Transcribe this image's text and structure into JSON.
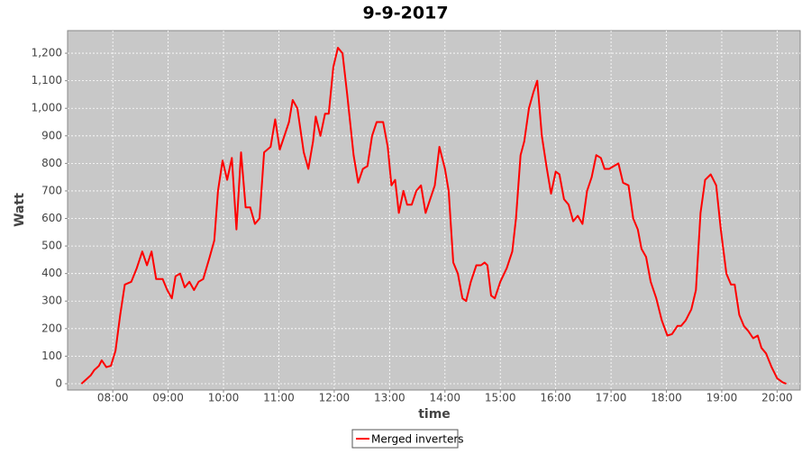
{
  "chart_data": {
    "type": "line",
    "title": "9-9-2017",
    "xlabel": "time",
    "ylabel": "Watt",
    "x": [
      "07:26",
      "07:36",
      "07:40",
      "07:45",
      "07:48",
      "07:53",
      "07:58",
      "08:03",
      "08:08",
      "08:13",
      "08:20",
      "08:26",
      "08:32",
      "08:37",
      "08:42",
      "08:47",
      "08:54",
      "08:59",
      "09:04",
      "09:08",
      "09:13",
      "09:18",
      "09:23",
      "09:28",
      "09:33",
      "09:38",
      "09:45",
      "09:50",
      "09:54",
      "09:59",
      "10:04",
      "10:09",
      "10:14",
      "10:19",
      "10:24",
      "10:29",
      "10:34",
      "10:39",
      "10:44",
      "10:51",
      "10:56",
      "11:01",
      "11:06",
      "11:11",
      "11:15",
      "11:20",
      "11:27",
      "11:32",
      "11:37",
      "11:40",
      "11:45",
      "11:50",
      "11:54",
      "11:59",
      "12:04",
      "12:09",
      "12:14",
      "12:21",
      "12:26",
      "12:31",
      "12:36",
      "12:41",
      "12:46",
      "12:53",
      "12:58",
      "13:02",
      "13:06",
      "13:10",
      "13:15",
      "13:19",
      "13:24",
      "13:29",
      "13:34",
      "13:39",
      "13:44",
      "13:49",
      "13:54",
      "14:00",
      "14:04",
      "14:09",
      "14:14",
      "14:19",
      "14:23",
      "14:28",
      "14:34",
      "14:39",
      "14:43",
      "14:46",
      "14:50",
      "14:54",
      "15:00",
      "15:07",
      "15:13",
      "15:17",
      "15:22",
      "15:26",
      "15:31",
      "15:36",
      "15:40",
      "15:45",
      "15:50",
      "15:55",
      "16:00",
      "16:04",
      "16:09",
      "16:14",
      "16:19",
      "16:24",
      "16:29",
      "16:34",
      "16:39",
      "16:44",
      "16:49",
      "16:53",
      "16:58",
      "17:03",
      "17:08",
      "17:13",
      "17:19",
      "17:24",
      "17:29",
      "17:33",
      "17:38",
      "17:43",
      "17:49",
      "17:55",
      "18:01",
      "18:06",
      "18:12",
      "18:16",
      "18:21",
      "18:27",
      "18:32",
      "18:37",
      "18:42",
      "18:48",
      "18:54",
      "18:59",
      "19:05",
      "19:10",
      "19:14",
      "19:19",
      "19:24",
      "19:29",
      "19:34",
      "19:39",
      "19:43",
      "19:48",
      "19:54",
      "20:00",
      "20:06",
      "20:10"
    ],
    "series": [
      {
        "name": "Merged inverters",
        "color": "#ff0000",
        "values": [
          0,
          30,
          50,
          65,
          85,
          60,
          65,
          120,
          250,
          360,
          370,
          420,
          480,
          430,
          480,
          380,
          380,
          340,
          310,
          390,
          400,
          350,
          370,
          340,
          370,
          380,
          460,
          520,
          700,
          810,
          740,
          820,
          560,
          840,
          640,
          640,
          580,
          600,
          840,
          860,
          960,
          850,
          900,
          950,
          1030,
          1000,
          840,
          780,
          880,
          970,
          900,
          980,
          980,
          1150,
          1220,
          1200,
          1050,
          830,
          730,
          780,
          790,
          900,
          950,
          950,
          860,
          720,
          740,
          620,
          700,
          650,
          650,
          700,
          720,
          620,
          670,
          720,
          860,
          780,
          700,
          440,
          400,
          310,
          300,
          370,
          430,
          430,
          440,
          430,
          320,
          310,
          370,
          420,
          480,
          600,
          830,
          880,
          1000,
          1060,
          1100,
          900,
          790,
          690,
          770,
          760,
          670,
          650,
          590,
          610,
          580,
          700,
          750,
          830,
          820,
          780,
          780,
          790,
          800,
          730,
          720,
          600,
          560,
          490,
          460,
          370,
          310,
          230,
          175,
          180,
          210,
          210,
          230,
          270,
          340,
          620,
          740,
          760,
          720,
          560,
          400,
          360,
          360,
          250,
          210,
          190,
          165,
          175,
          130,
          110,
          60,
          20,
          5,
          0
        ]
      }
    ],
    "xlim": [
      "07:11",
      "20:25"
    ],
    "xticks": [
      "08:00",
      "09:00",
      "10:00",
      "11:00",
      "12:00",
      "13:00",
      "14:00",
      "15:00",
      "16:00",
      "17:00",
      "18:00",
      "19:00",
      "20:00"
    ],
    "ylim": [
      -23,
      1282
    ],
    "yticks": [
      0,
      100,
      200,
      300,
      400,
      500,
      600,
      700,
      800,
      900,
      {
        "value": 1000,
        "label": "1,000"
      },
      {
        "value": 1100,
        "label": "1,100"
      },
      {
        "value": 1200,
        "label": "1,200"
      }
    ],
    "grid": true,
    "legend": "bottom"
  }
}
